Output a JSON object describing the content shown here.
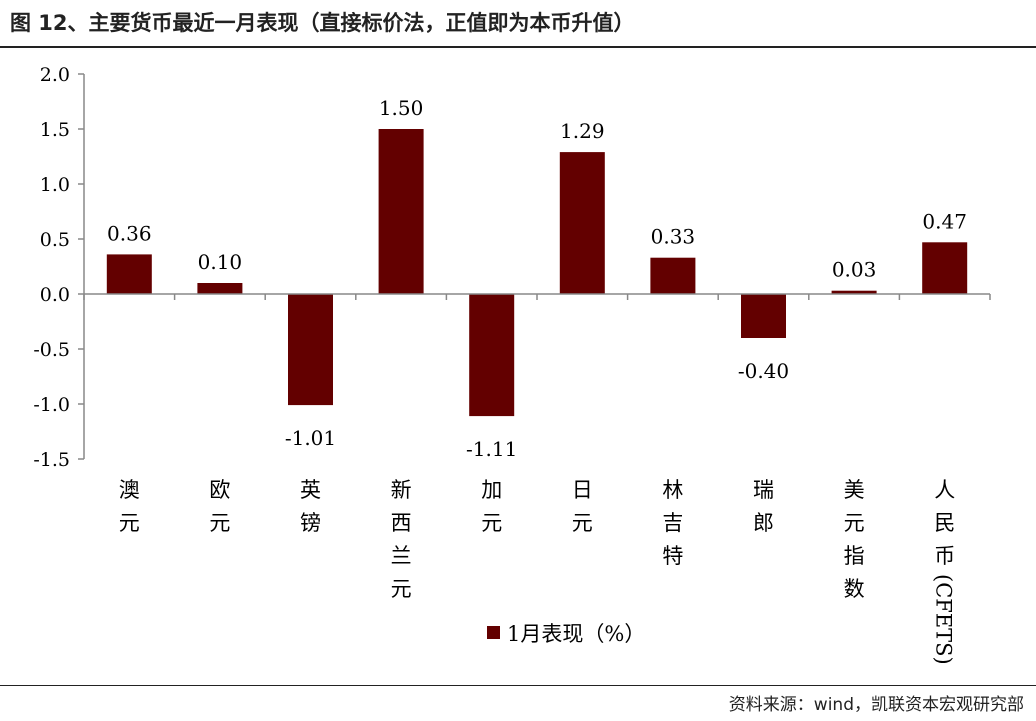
{
  "title": "图 12、主要货币最近一月表现（直接标价法，正值即为本币升值）",
  "source": "资料来源：wind，凯联资本宏观研究部",
  "colors": {
    "bar": "#630000",
    "axis": "#888888"
  },
  "chart_data": {
    "type": "bar",
    "categories": [
      "澳元",
      "欧元",
      "英镑",
      "新西兰元",
      "加元",
      "日元",
      "林吉特",
      "瑞郎",
      "美元指数",
      "人民币(CFETS)"
    ],
    "series": [
      {
        "name": "1月表现（%）",
        "values": [
          0.36,
          0.1,
          -1.01,
          1.5,
          -1.11,
          1.29,
          0.33,
          -0.4,
          0.03,
          0.47
        ]
      }
    ],
    "data_labels": [
      "0.36",
      "0.10",
      "-1.01",
      "1.50",
      "-1.11",
      "1.29",
      "0.33",
      "-0.40",
      "0.03",
      "0.47"
    ],
    "ylim": [
      -1.5,
      2.0
    ],
    "yticks": [
      2.0,
      1.5,
      1.0,
      0.5,
      0.0,
      -0.5,
      -1.0,
      -1.5
    ],
    "ytick_labels": [
      "2.0",
      "1.5",
      "1.0",
      "0.5",
      "0.0",
      "-0.5",
      "-1.0",
      "-1.5"
    ],
    "xlabel": "",
    "ylabel": "",
    "grid": false,
    "legend": "bottom-center"
  }
}
